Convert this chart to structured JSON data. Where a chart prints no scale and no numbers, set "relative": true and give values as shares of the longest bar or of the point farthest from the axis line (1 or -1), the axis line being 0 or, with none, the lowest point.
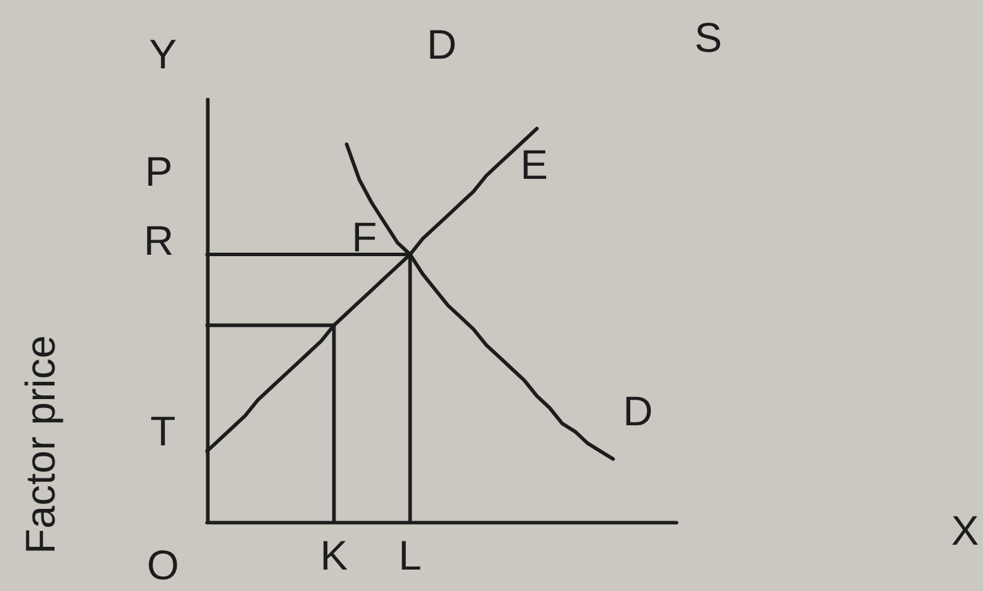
{
  "chart_data": {
    "type": "line",
    "relative": true,
    "ylabel": "Factor price",
    "marker": "none",
    "categories": [
      null,
      null,
      null,
      null,
      null,
      null,
      null,
      null,
      null,
      null,
      "K",
      null,
      null,
      null,
      null,
      null,
      "L",
      null,
      null,
      null,
      null,
      null,
      null,
      null,
      null,
      null,
      null,
      null,
      null,
      null,
      null,
      null,
      null,
      null,
      null,
      null,
      null,
      null
    ],
    "series": [
      {
        "name": "D",
        "color": "#1c1c1c",
        "values": [
          null,
          null,
          null,
          null,
          null,
          null,
          null,
          null,
          null,
          null,
          null,
          0.96,
          0.87,
          0.81,
          0.76,
          0.71,
          0.68,
          0.63,
          0.59,
          0.55,
          0.52,
          0.49,
          0.45,
          0.42,
          0.39,
          0.36,
          0.32,
          0.29,
          0.25,
          0.23,
          0.2,
          0.18,
          0.16,
          null,
          null,
          null,
          null,
          null
        ]
      },
      {
        "name": "E",
        "color": "#1c1c1c",
        "values": [
          0.18,
          0.21,
          0.24,
          0.27,
          0.31,
          0.34,
          0.37,
          0.4,
          0.43,
          0.46,
          0.5,
          0.53,
          0.56,
          0.59,
          0.62,
          0.65,
          0.68,
          0.72,
          0.75,
          0.78,
          0.81,
          0.84,
          0.88,
          0.91,
          0.94,
          0.97,
          1.0,
          null,
          null,
          null,
          null,
          null,
          null,
          null,
          null,
          null,
          null,
          null
        ]
      },
      {
        "color": "#1c1c1c",
        "values": [
          0.68,
          0.68,
          0.68,
          0.68,
          0.68,
          0.68,
          0.68,
          0.68,
          0.68,
          0.68,
          0.68,
          0.68,
          0.68,
          0.68,
          0.68,
          0.68,
          0.68,
          null,
          null,
          null,
          null,
          null,
          null,
          null,
          null,
          null,
          null,
          null,
          null,
          null,
          null,
          null,
          null,
          null,
          null,
          null,
          null,
          null
        ]
      },
      {
        "color": "#1c1c1c",
        "values": [
          0.5,
          0.5,
          0.5,
          0.5,
          0.5,
          0.5,
          0.5,
          0.5,
          0.5,
          0.5,
          0.5,
          null,
          null,
          null,
          null,
          null,
          null,
          null,
          null,
          null,
          null,
          null,
          null,
          null,
          null,
          null,
          null,
          null,
          null,
          null,
          null,
          null,
          null,
          null,
          null,
          null,
          null,
          null
        ]
      },
      {
        "color": "#1c1c1c",
        "x": [
          "K",
          "K"
        ],
        "values": [
          0,
          0.5
        ]
      },
      {
        "color": "#1c1c1c",
        "x": [
          "L",
          "L"
        ],
        "values": [
          0,
          0.68
        ]
      }
    ],
    "annotations": [
      "Y",
      "D",
      "S",
      "P",
      "R",
      "T",
      "O",
      "X",
      {
        "text": "F",
        "x": "L",
        "y": 0.68
      }
    ]
  }
}
